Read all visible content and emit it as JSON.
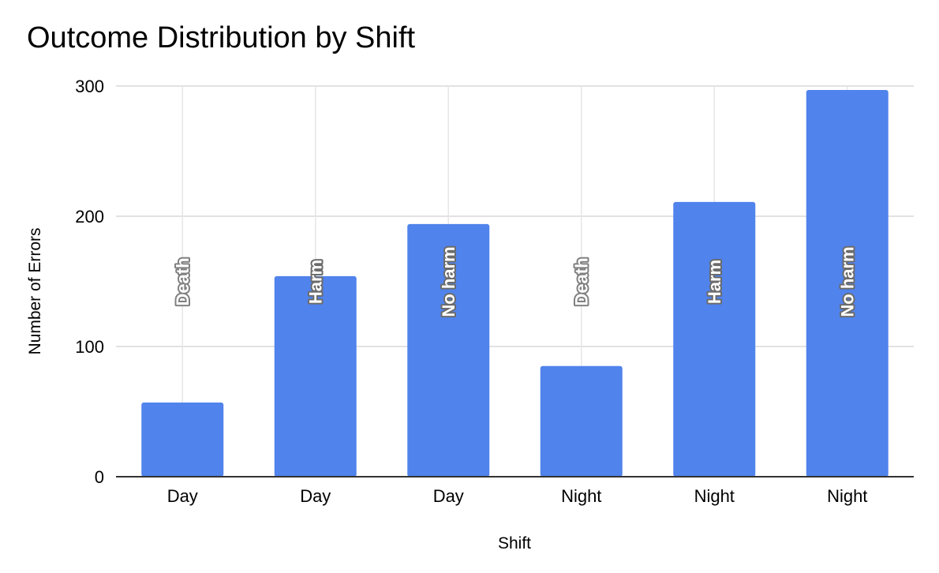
{
  "chart_data": {
    "type": "bar",
    "title": "Outcome Distribution by Shift",
    "xlabel": "Shift",
    "ylabel": "Number of Errors",
    "categories": [
      "Day",
      "Day",
      "Day",
      "Night",
      "Night",
      "Night"
    ],
    "bar_labels": [
      "Death",
      "Harm",
      "No harm",
      "Death",
      "Harm",
      "No harm"
    ],
    "values": [
      57,
      154,
      194,
      85,
      211,
      297
    ],
    "ylim": [
      0,
      300
    ],
    "yticks": [
      0,
      100,
      200,
      300
    ],
    "grid": true,
    "legend": "none",
    "colors": {
      "bar": "#5083ec",
      "grid": "#d9d9d9",
      "axis": "#333333"
    }
  }
}
